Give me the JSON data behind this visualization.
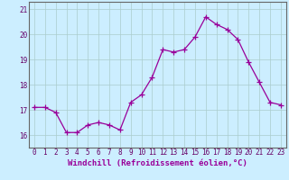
{
  "x": [
    0,
    1,
    2,
    3,
    4,
    5,
    6,
    7,
    8,
    9,
    10,
    11,
    12,
    13,
    14,
    15,
    16,
    17,
    18,
    19,
    20,
    21,
    22,
    23
  ],
  "y": [
    17.1,
    17.1,
    16.9,
    16.1,
    16.1,
    16.4,
    16.5,
    16.4,
    16.2,
    17.3,
    17.6,
    18.3,
    19.4,
    19.3,
    19.4,
    19.9,
    20.7,
    20.4,
    20.2,
    19.8,
    18.9,
    18.1,
    17.3,
    17.2
  ],
  "line_color": "#990099",
  "marker": "+",
  "marker_size": 4,
  "bg_color": "#cceeff",
  "grid_color": "#aacccc",
  "xlabel": "Windchill (Refroidissement éolien,°C)",
  "ylim": [
    15.5,
    21.3
  ],
  "xlim": [
    -0.5,
    23.5
  ],
  "yticks": [
    16,
    17,
    18,
    19,
    20,
    21
  ],
  "xticks": [
    0,
    1,
    2,
    3,
    4,
    5,
    6,
    7,
    8,
    9,
    10,
    11,
    12,
    13,
    14,
    15,
    16,
    17,
    18,
    19,
    20,
    21,
    22,
    23
  ],
  "tick_fontsize": 5.5,
  "xlabel_fontsize": 6.5,
  "line_width": 0.9
}
